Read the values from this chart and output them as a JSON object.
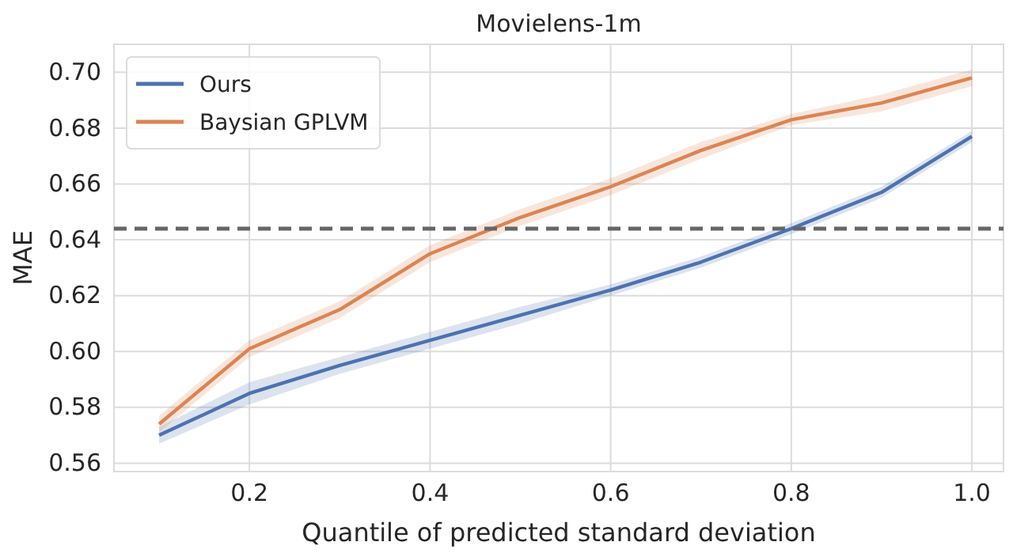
{
  "chart_data": {
    "type": "line",
    "title": "Movielens-1m",
    "xlabel": "Quantile of predicted standard deviation",
    "ylabel": "MAE",
    "x": [
      0.1,
      0.2,
      0.3,
      0.4,
      0.5,
      0.6,
      0.7,
      0.8,
      0.9,
      1.0
    ],
    "series": [
      {
        "name": "Ours",
        "color": "#4c72b0",
        "values": [
          0.57,
          0.585,
          0.595,
          0.604,
          0.613,
          0.622,
          0.632,
          0.644,
          0.657,
          0.677
        ],
        "lower": [
          0.567,
          0.581,
          0.592,
          0.601,
          0.61,
          0.62,
          0.63,
          0.642,
          0.655,
          0.675
        ],
        "upper": [
          0.573,
          0.589,
          0.598,
          0.607,
          0.616,
          0.624,
          0.634,
          0.646,
          0.659,
          0.679
        ]
      },
      {
        "name": "Baysian GPLVM",
        "color": "#dd8452",
        "values": [
          0.574,
          0.601,
          0.615,
          0.635,
          0.648,
          0.659,
          0.672,
          0.683,
          0.689,
          0.698
        ],
        "lower": [
          0.571,
          0.598,
          0.612,
          0.632,
          0.645,
          0.656,
          0.669,
          0.681,
          0.686,
          0.695
        ],
        "upper": [
          0.577,
          0.604,
          0.618,
          0.638,
          0.651,
          0.662,
          0.675,
          0.685,
          0.692,
          0.701
        ]
      }
    ],
    "xlim": [
      0.05,
      1.035
    ],
    "xticks": [
      0.2,
      0.4,
      0.6,
      0.8,
      {
        "value": 1.0,
        "label": "1.0"
      }
    ],
    "ylim": [
      0.557,
      0.71
    ],
    "yticks": [
      0.56,
      0.58,
      {
        "value": 0.6,
        "label": "0.60"
      },
      0.62,
      0.64,
      0.66,
      0.68,
      {
        "value": 0.7,
        "label": "0.70"
      }
    ],
    "ref_lines": [
      {
        "axis": "y",
        "value": 0.644,
        "color": "#666666",
        "line_style": "dashed"
      }
    ],
    "grid": true,
    "legend": "top left",
    "marker": "none",
    "line_style": "solid"
  }
}
